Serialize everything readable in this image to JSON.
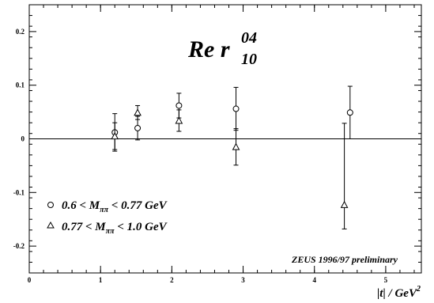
{
  "chart_data": {
    "type": "scatter",
    "title_prefix": "Re r",
    "title_superscript": "04",
    "title_subscript": "10",
    "annotation": "ZEUS 1996/97 preliminary",
    "xlabel_abs": "|t|",
    "xlabel_main": " / GeV",
    "xlabel_sup": "2",
    "xlim": [
      0,
      5.5
    ],
    "ylim": [
      -0.25,
      0.25
    ],
    "x_ticks": [
      {
        "value": 0,
        "label": "0"
      },
      {
        "value": 1,
        "label": "1"
      },
      {
        "value": 2,
        "label": "2"
      },
      {
        "value": 3,
        "label": "3"
      },
      {
        "value": 4,
        "label": "4"
      },
      {
        "value": 5,
        "label": "5"
      }
    ],
    "y_ticks": [
      {
        "value": 0.2,
        "label": "0.2"
      },
      {
        "value": 0.1,
        "label": "0.1"
      },
      {
        "value": 0,
        "label": "0"
      },
      {
        "value": -0.1,
        "label": "-0.1"
      },
      {
        "value": -0.2,
        "label": "-0.2"
      }
    ],
    "zero_line": true,
    "grid": false,
    "legend_placement": "bottom-left",
    "series": [
      {
        "legend_prefix": "0.6 < M",
        "legend_sub": "ππ",
        "legend_suffix": " < 0.77 GeV",
        "marker": "circle",
        "points": [
          {
            "x": 1.2,
            "y": 0.012,
            "err": 0.035
          },
          {
            "x": 1.52,
            "y": 0.02,
            "err": 0.022
          },
          {
            "x": 2.1,
            "y": 0.062,
            "err": 0.023
          },
          {
            "x": 2.9,
            "y": 0.056,
            "err": 0.04
          },
          {
            "x": 4.5,
            "y": 0.049,
            "err": 0.049
          }
        ]
      },
      {
        "legend_prefix": "0.77 < M",
        "legend_sub": "ππ",
        "legend_suffix": " < 1.0 GeV",
        "marker": "triangle",
        "points": [
          {
            "x": 1.2,
            "y": 0.005,
            "err": 0.025
          },
          {
            "x": 1.52,
            "y": 0.049,
            "err": 0.013
          },
          {
            "x": 2.1,
            "y": 0.034,
            "err": 0.02
          },
          {
            "x": 2.9,
            "y": -0.015,
            "err": 0.034
          },
          {
            "x": 4.42,
            "y": -0.123,
            "err": 0.152,
            "err_up": 0.152,
            "err_down": 0.045
          }
        ]
      }
    ]
  }
}
